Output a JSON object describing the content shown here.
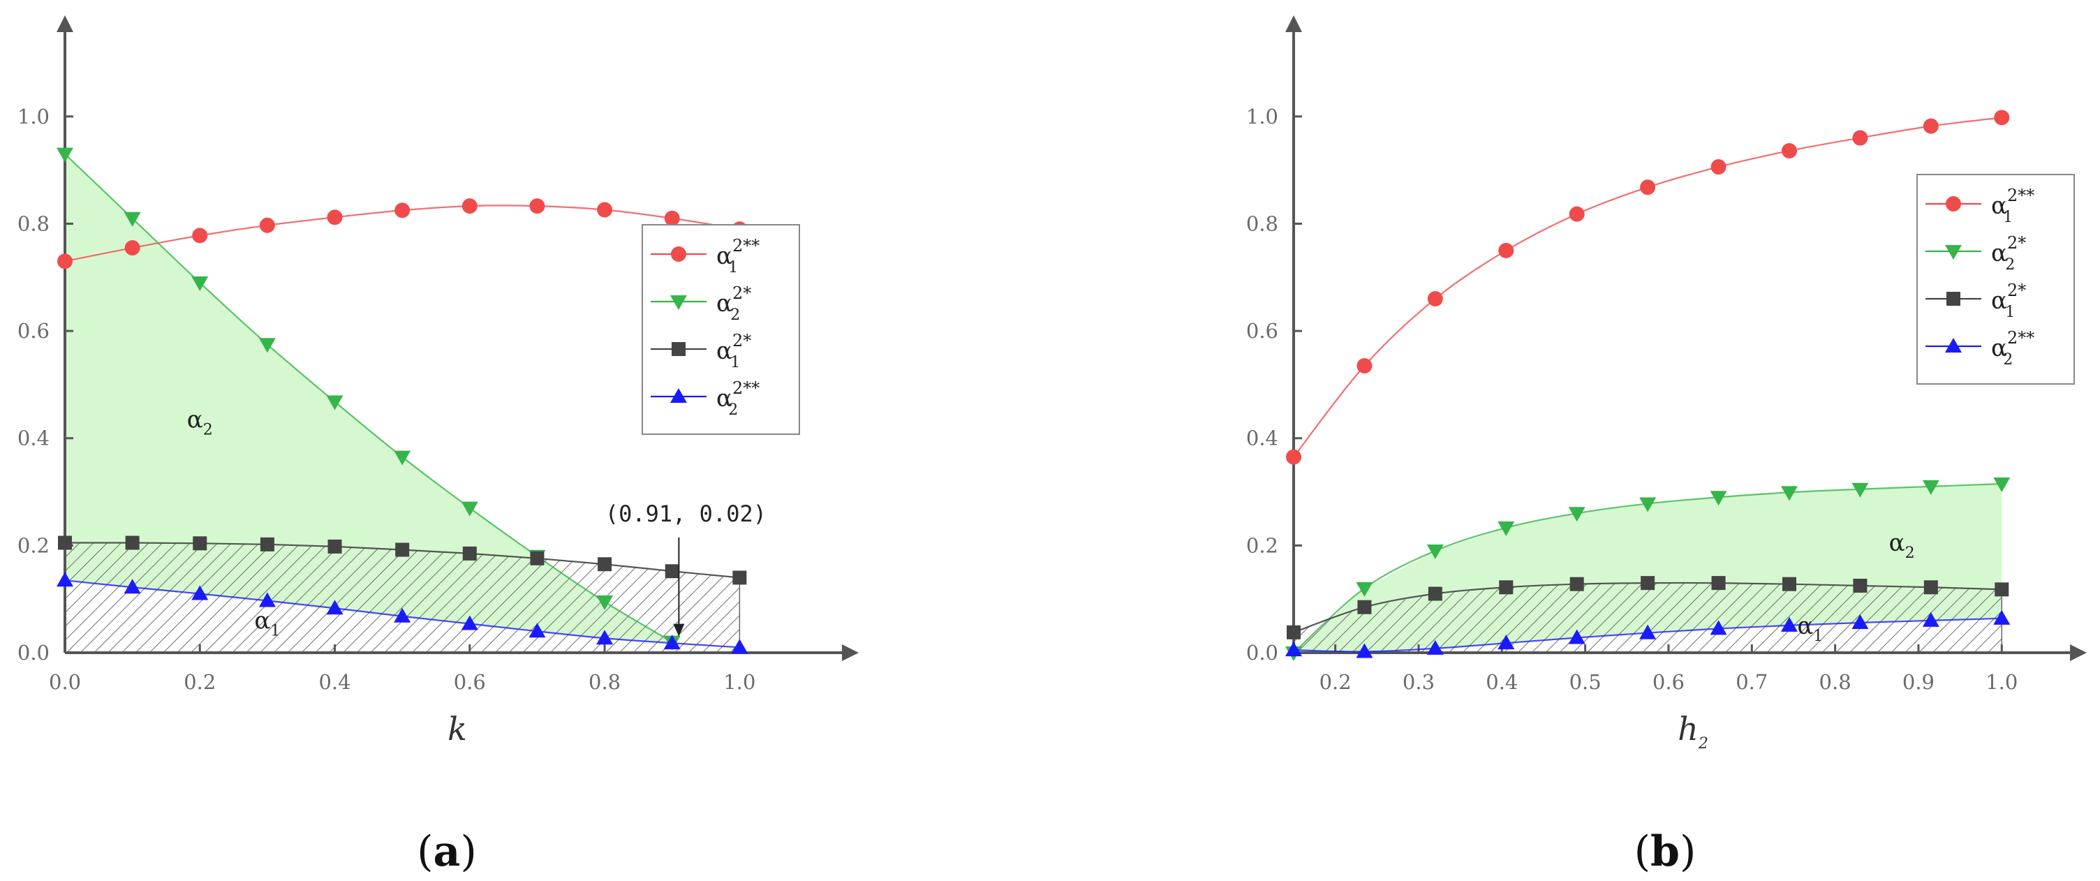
{
  "colors": {
    "red": "#f04b4b",
    "green": "#35b54a",
    "dark": "#444444",
    "blue": "#1a1aff",
    "fill_green": "#d6f8d0",
    "axis": "#555555"
  },
  "chart_data": [
    {
      "type": "line",
      "caption": {
        "open": "(",
        "letter": "a",
        "close": ")"
      },
      "xlabel": "k",
      "xlim": [
        0,
        1.1
      ],
      "ylim": [
        0,
        1.1
      ],
      "x_ticks": [
        "0.0",
        "0.2",
        "0.4",
        "0.6",
        "0.8",
        "1.0"
      ],
      "y_ticks": [
        "0.0",
        "0.2",
        "0.4",
        "0.6",
        "0.8",
        "1.0"
      ],
      "legend_placement": "right",
      "region_labels": [
        {
          "base": "α",
          "sub": "2",
          "x": 0.2,
          "y": 0.42
        },
        {
          "base": "α",
          "sub": "1",
          "x": 0.3,
          "y": 0.045
        }
      ],
      "annotation": {
        "text": "(0.91, 0.02)",
        "x": 0.91,
        "y": 0.02
      },
      "series": [
        {
          "name": "α1^2**",
          "base": "α",
          "sub": "1",
          "sup": "2**",
          "color": "red",
          "marker": "circle",
          "x": [
            0,
            0.1,
            0.2,
            0.3,
            0.4,
            0.5,
            0.6,
            0.7,
            0.8,
            0.9,
            1.0
          ],
          "y": [
            0.73,
            0.755,
            0.778,
            0.797,
            0.812,
            0.825,
            0.833,
            0.833,
            0.826,
            0.81,
            0.79
          ]
        },
        {
          "name": "α2^2*",
          "base": "α",
          "sub": "2",
          "sup": "2*",
          "color": "green",
          "marker": "triangle-down",
          "x": [
            0,
            0.1,
            0.2,
            0.3,
            0.4,
            0.5,
            0.6,
            0.7,
            0.8,
            0.9
          ],
          "y": [
            0.93,
            0.81,
            0.69,
            0.575,
            0.468,
            0.365,
            0.27,
            0.18,
            0.095,
            0.02
          ]
        },
        {
          "name": "α1^2*",
          "base": "α",
          "sub": "1",
          "sup": "2*",
          "color": "dark",
          "marker": "square",
          "x": [
            0,
            0.1,
            0.2,
            0.3,
            0.4,
            0.5,
            0.6,
            0.7,
            0.8,
            0.9,
            1.0
          ],
          "y": [
            0.205,
            0.205,
            0.204,
            0.202,
            0.198,
            0.192,
            0.185,
            0.176,
            0.165,
            0.152,
            0.14
          ]
        },
        {
          "name": "α2^2**",
          "base": "α",
          "sub": "2",
          "sup": "2**",
          "color": "blue",
          "marker": "triangle-up",
          "x": [
            0,
            0.1,
            0.2,
            0.3,
            0.4,
            0.5,
            0.6,
            0.7,
            0.8,
            0.9,
            1.0
          ],
          "y": [
            0.135,
            0.122,
            0.11,
            0.097,
            0.083,
            0.068,
            0.054,
            0.04,
            0.027,
            0.018,
            0.01
          ]
        }
      ]
    },
    {
      "type": "line",
      "caption": {
        "open": "(",
        "letter": "b",
        "close": ")"
      },
      "xlabel": "h",
      "xlabel_sub": "2",
      "xlim": [
        0.15,
        1.04
      ],
      "ylim": [
        0,
        1.1
      ],
      "x_ticks": [
        "0.2",
        "0.3",
        "0.4",
        "0.5",
        "0.6",
        "0.7",
        "0.8",
        "0.9",
        "1.0"
      ],
      "y_ticks": [
        "0.0",
        "0.2",
        "0.4",
        "0.6",
        "0.8",
        "1.0"
      ],
      "legend_placement": "right",
      "region_labels": [
        {
          "base": "α",
          "sub": "2",
          "x": 0.88,
          "y": 0.19
        },
        {
          "base": "α",
          "sub": "1",
          "x": 0.77,
          "y": 0.035
        }
      ],
      "series": [
        {
          "name": "α1^2**",
          "base": "α",
          "sub": "1",
          "sup": "2**",
          "color": "red",
          "marker": "circle",
          "x": [
            0.15,
            0.235,
            0.32,
            0.405,
            0.49,
            0.575,
            0.66,
            0.745,
            0.83,
            0.915,
            1.0
          ],
          "y": [
            0.365,
            0.535,
            0.66,
            0.75,
            0.818,
            0.868,
            0.906,
            0.936,
            0.96,
            0.982,
            0.998
          ]
        },
        {
          "name": "α2^2*",
          "base": "α",
          "sub": "2",
          "sup": "2*",
          "color": "green",
          "marker": "triangle-down",
          "x": [
            0.15,
            0.235,
            0.32,
            0.405,
            0.49,
            0.575,
            0.66,
            0.745,
            0.83,
            0.915,
            1.0
          ],
          "y": [
            0.0,
            0.12,
            0.19,
            0.233,
            0.26,
            0.278,
            0.29,
            0.299,
            0.305,
            0.31,
            0.315
          ]
        },
        {
          "name": "α1^2*",
          "base": "α",
          "sub": "1",
          "sup": "2*",
          "color": "dark",
          "marker": "square",
          "x": [
            0.15,
            0.235,
            0.32,
            0.405,
            0.49,
            0.575,
            0.66,
            0.745,
            0.83,
            0.915,
            1.0
          ],
          "y": [
            0.038,
            0.085,
            0.11,
            0.122,
            0.128,
            0.13,
            0.13,
            0.128,
            0.125,
            0.122,
            0.118
          ]
        },
        {
          "name": "α2^2**",
          "base": "α",
          "sub": "2",
          "sup": "2**",
          "color": "blue",
          "marker": "triangle-up",
          "x": [
            0.15,
            0.235,
            0.32,
            0.405,
            0.49,
            0.575,
            0.66,
            0.745,
            0.83,
            0.915,
            1.0
          ],
          "y": [
            0.005,
            0.002,
            0.008,
            0.018,
            0.028,
            0.037,
            0.045,
            0.051,
            0.056,
            0.06,
            0.064
          ]
        }
      ]
    }
  ]
}
